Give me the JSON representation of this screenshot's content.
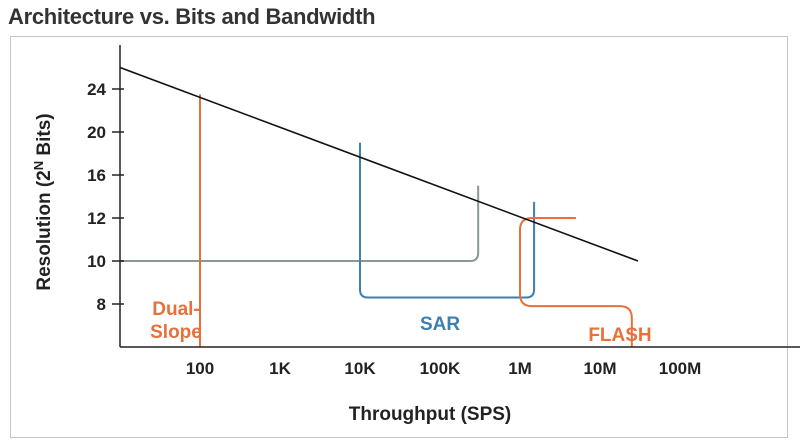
{
  "chart_data": {
    "type": "line",
    "title": "Architecture vs. Bits and Bandwidth",
    "xlabel": "Throughput (SPS)",
    "ylabel_prefix": "Resolution (2",
    "ylabel_sup": "N",
    "ylabel_suffix": " Bits)",
    "x_scale": "log",
    "xlim": [
      10,
      100000000
    ],
    "ylim": [
      6,
      26
    ],
    "x_ticks": [
      {
        "value": 100,
        "label": "100"
      },
      {
        "value": 1000,
        "label": "1K"
      },
      {
        "value": 10000,
        "label": "10K"
      },
      {
        "value": 100000,
        "label": "100K"
      },
      {
        "value": 1000000,
        "label": "1M"
      },
      {
        "value": 10000000,
        "label": "10M"
      },
      {
        "value": 100000000,
        "label": "100M"
      }
    ],
    "y_ticks": [
      8,
      10,
      12,
      16,
      20,
      24
    ],
    "limit_line": {
      "x": [
        10,
        100000000
      ],
      "y": [
        26,
        10
      ]
    },
    "regions": [
      {
        "name": "Dual-Slope",
        "label_lines": [
          "Dual-",
          "Slope"
        ],
        "color": "#e8703a",
        "x_start": 100,
        "y_top": 23.5
      },
      {
        "name": "SAR",
        "label_lines": [
          "SAR"
        ],
        "color": "#3d7fb0",
        "x_min": 10000,
        "x_max": 1500000,
        "y_top_left": 19,
        "y_top_right": 13.5,
        "y_bottom": 8.3
      },
      {
        "name": "FLASH",
        "label_lines": [
          "FLASH"
        ],
        "color": "#e8703a",
        "x_min": 1000000,
        "x_max": 25000000,
        "y_top": 12,
        "y_bottom": 7.9
      },
      {
        "name": "",
        "label_lines": [],
        "color": "#8a9a90",
        "x_min": 10,
        "x_max": 300000,
        "y_top": 15,
        "y_bottom": 10
      }
    ],
    "grid": false
  }
}
